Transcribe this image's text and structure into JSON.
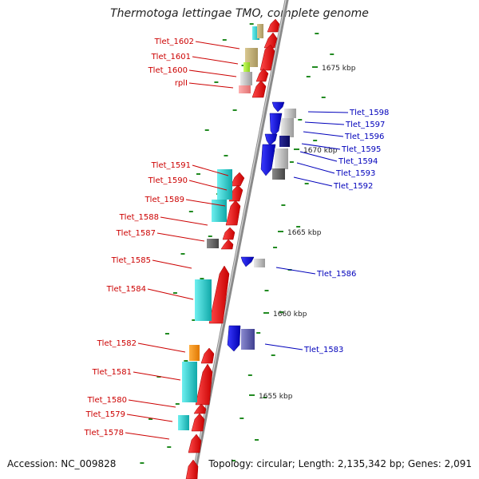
{
  "title": "Thermotoga lettingae TMO, complete genome",
  "footer": {
    "accession": "Accession: NC_009828",
    "topology": "Topology: circular; Length: 2,135,342 bp; Genes: 2,091"
  },
  "colors": {
    "left_label": "#cc0000",
    "right_label": "#0000bb",
    "forward_gene": "#ee0000",
    "reverse_gene": "#1a1aee",
    "cyan_block": "#22cccc",
    "tick": "#228b22",
    "axis": "#888888"
  },
  "scale_labels": [
    {
      "text": "1675 kbp",
      "bp": 1675000
    },
    {
      "text": "1670 kbp",
      "bp": 1670000
    },
    {
      "text": "1665 kbp",
      "bp": 1665000
    },
    {
      "text": "1660 kbp",
      "bp": 1660000
    },
    {
      "text": "1655 kbp",
      "bp": 1655000
    }
  ],
  "left_labels": [
    "Tlet_1602",
    "Tlet_1601",
    "Tlet_1600",
    "rplI",
    "Tlet_1591",
    "Tlet_1590",
    "Tlet_1589",
    "Tlet_1588",
    "Tlet_1587",
    "Tlet_1585",
    "Tlet_1584",
    "Tlet_1582",
    "Tlet_1581",
    "Tlet_1580",
    "Tlet_1579",
    "Tlet_1578"
  ],
  "right_labels": [
    "Tlet_1598",
    "Tlet_1597",
    "Tlet_1596",
    "Tlet_1595",
    "Tlet_1594",
    "Tlet_1593",
    "Tlet_1592",
    "Tlet_1586",
    "Tlet_1583"
  ]
}
